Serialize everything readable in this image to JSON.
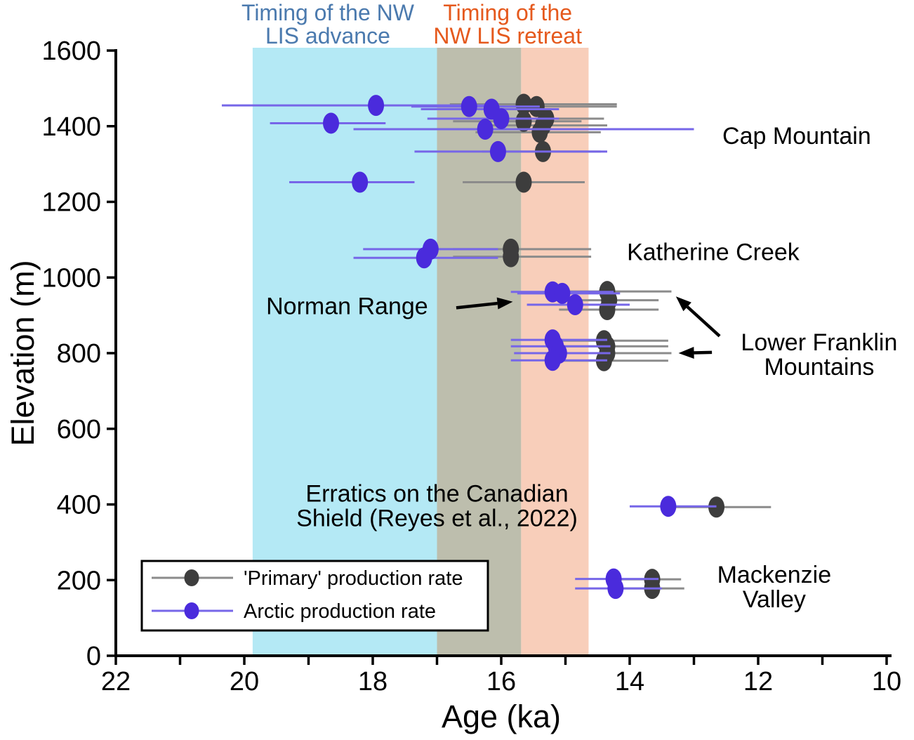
{
  "figure": {
    "band_titles": [
      {
        "lines": [
          "Timing of the NW",
          "LIS advance"
        ],
        "color": "#4B7AAE",
        "center_age": 18.7
      },
      {
        "lines": [
          "Timing of the",
          "NW LIS retreat"
        ],
        "color": "#E5591D",
        "center_age": 15.9
      }
    ],
    "legend": {
      "entries": [
        {
          "label": "'Primary' production rate",
          "marker": "#3D3D3D",
          "line": "#8B8B8B"
        },
        {
          "label": "Arctic production rate",
          "marker": "#4A2BDC",
          "line": "#7666E8"
        }
      ]
    }
  },
  "chart_data": {
    "type": "scatter",
    "title": "",
    "xlabel": "Age (ka)",
    "ylabel": "Elevation (m)",
    "xlim": [
      22,
      10
    ],
    "ylim": [
      0,
      1600
    ],
    "x_ticks": [
      22,
      21,
      20,
      19,
      18,
      17,
      16,
      15,
      14,
      13,
      12,
      11,
      10
    ],
    "x_tick_labels": [
      "22",
      "20",
      "18",
      "16",
      "14",
      "12",
      "10"
    ],
    "y_ticks": [
      0,
      200,
      400,
      600,
      800,
      1000,
      1200,
      1400,
      1600
    ],
    "grid": false,
    "bands": [
      {
        "name": "NW LIS advance",
        "from_ka": 19.87,
        "to_ka": 17.0,
        "color": "#B4E9F5"
      },
      {
        "name": "advance-retreat overlap",
        "from_ka": 17.0,
        "to_ka": 15.69,
        "color": "#BDBEAD"
      },
      {
        "name": "NW LIS retreat",
        "from_ka": 15.69,
        "to_ka": 14.64,
        "color": "#F8CEBA"
      }
    ],
    "series": [
      {
        "name": "'Primary' production rate",
        "marker_color": "#3D3D3D",
        "bar_color": "#8B8B8B",
        "points": [
          {
            "group": "Cap Mountain",
            "age": 15.65,
            "elev": 1458,
            "age_old": 16.8,
            "age_young": 14.2
          },
          {
            "group": "Cap Mountain",
            "age": 15.45,
            "elev": 1452,
            "age_old": 16.6,
            "age_young": 14.2
          },
          {
            "group": "Cap Mountain",
            "age": 15.3,
            "elev": 1420,
            "age_old": 16.3,
            "age_young": 14.4
          },
          {
            "group": "Cap Mountain",
            "age": 15.65,
            "elev": 1413,
            "age_old": 16.75,
            "age_young": 14.75
          },
          {
            "group": "Cap Mountain",
            "age": 15.35,
            "elev": 1402,
            "age_old": 16.35,
            "age_young": 14.35
          },
          {
            "group": "Cap Mountain",
            "age": 15.4,
            "elev": 1384,
            "age_old": 16.4,
            "age_young": 14.45
          },
          {
            "group": "Cap Mountain",
            "age": 15.35,
            "elev": 1333,
            "age_old": 16.3,
            "age_young": 14.45
          },
          {
            "group": "Cap Mountain",
            "age": 15.65,
            "elev": 1252,
            "age_old": 16.6,
            "age_young": 14.7
          },
          {
            "group": "Katherine Creek",
            "age": 15.85,
            "elev": 1075,
            "age_old": 16.75,
            "age_young": 14.6
          },
          {
            "group": "Katherine Creek",
            "age": 15.85,
            "elev": 1055,
            "age_old": 16.75,
            "age_young": 14.6
          },
          {
            "group": "Norman Range",
            "age": 14.35,
            "elev": 963,
            "age_old": 15.15,
            "age_young": 13.35
          },
          {
            "group": "Norman Range",
            "age": 14.32,
            "elev": 940,
            "age_old": 15.1,
            "age_young": 13.55
          },
          {
            "group": "Norman Range",
            "age": 14.35,
            "elev": 915,
            "age_old": 15.1,
            "age_young": 13.55
          },
          {
            "group": "Lower Franklin Mountains",
            "age": 14.4,
            "elev": 833,
            "age_old": 15.2,
            "age_young": 13.4
          },
          {
            "group": "Lower Franklin Mountains",
            "age": 14.35,
            "elev": 818,
            "age_old": 15.2,
            "age_young": 13.4
          },
          {
            "group": "Lower Franklin Mountains",
            "age": 14.35,
            "elev": 800,
            "age_old": 15.2,
            "age_young": 13.35
          },
          {
            "group": "Lower Franklin Mountains",
            "age": 14.4,
            "elev": 780,
            "age_old": 15.2,
            "age_young": 13.4
          },
          {
            "group": "Erratics on the Canadian Shield",
            "age": 12.65,
            "elev": 393,
            "age_old": 13.5,
            "age_young": 11.8
          },
          {
            "group": "Mackenzie Valley",
            "age": 13.65,
            "elev": 202,
            "age_old": 14.3,
            "age_young": 13.2
          },
          {
            "group": "Mackenzie Valley",
            "age": 13.65,
            "elev": 178,
            "age_old": 14.3,
            "age_young": 13.15
          }
        ]
      },
      {
        "name": "Arctic production rate",
        "marker_color": "#4A2BDC",
        "bar_color": "#7666E8",
        "points": [
          {
            "group": "Cap Mountain",
            "age": 17.95,
            "elev": 1455,
            "age_old": 20.35,
            "age_young": 16.25
          },
          {
            "group": "Cap Mountain",
            "age": 16.5,
            "elev": 1452,
            "age_old": 17.4,
            "age_young": 15.4
          },
          {
            "group": "Cap Mountain",
            "age": 16.15,
            "elev": 1445,
            "age_old": 17.25,
            "age_young": 15.1
          },
          {
            "group": "Cap Mountain",
            "age": 16.0,
            "elev": 1420,
            "age_old": 17.15,
            "age_young": 15.1
          },
          {
            "group": "Cap Mountain",
            "age": 18.65,
            "elev": 1408,
            "age_old": 19.6,
            "age_young": 17.8
          },
          {
            "group": "Cap Mountain",
            "age": 16.25,
            "elev": 1392,
            "age_old": 18.3,
            "age_young": 13.0
          },
          {
            "group": "Cap Mountain",
            "age": 16.05,
            "elev": 1333,
            "age_old": 17.35,
            "age_young": 14.35
          },
          {
            "group": "Cap Mountain",
            "age": 18.2,
            "elev": 1252,
            "age_old": 19.3,
            "age_young": 17.35
          },
          {
            "group": "Katherine Creek",
            "age": 17.1,
            "elev": 1075,
            "age_old": 18.15,
            "age_young": 16.05
          },
          {
            "group": "Katherine Creek",
            "age": 17.2,
            "elev": 1052,
            "age_old": 18.3,
            "age_young": 16.05
          },
          {
            "group": "Norman Range",
            "age": 15.2,
            "elev": 962,
            "age_old": 15.85,
            "age_young": 14.25
          },
          {
            "group": "Norman Range",
            "age": 15.05,
            "elev": 958,
            "age_old": 15.75,
            "age_young": 14.15
          },
          {
            "group": "Norman Range",
            "age": 14.85,
            "elev": 928,
            "age_old": 15.6,
            "age_young": 14.0
          },
          {
            "group": "Lower Franklin Mountains",
            "age": 15.2,
            "elev": 835,
            "age_old": 15.85,
            "age_young": 14.35
          },
          {
            "group": "Lower Franklin Mountains",
            "age": 15.15,
            "elev": 818,
            "age_old": 15.85,
            "age_young": 14.3
          },
          {
            "group": "Lower Franklin Mountains",
            "age": 15.1,
            "elev": 800,
            "age_old": 15.8,
            "age_young": 14.3
          },
          {
            "group": "Lower Franklin Mountains",
            "age": 15.2,
            "elev": 781,
            "age_old": 15.85,
            "age_young": 14.35
          },
          {
            "group": "Erratics on the Canadian Shield",
            "age": 13.4,
            "elev": 395,
            "age_old": 14.0,
            "age_young": 12.65
          },
          {
            "group": "Mackenzie Valley",
            "age": 14.25,
            "elev": 203,
            "age_old": 14.85,
            "age_young": 13.55
          },
          {
            "group": "Mackenzie Valley",
            "age": 14.22,
            "elev": 178,
            "age_old": 14.85,
            "age_young": 13.5
          }
        ]
      }
    ],
    "annotations": [
      {
        "lines": [
          "Cap Mountain"
        ],
        "age": 11.4,
        "elev": 1375
      },
      {
        "lines": [
          "Katherine Creek"
        ],
        "age": 12.7,
        "elev": 1068
      },
      {
        "lines": [
          "Norman Range"
        ],
        "age": 18.4,
        "elev": 925
      },
      {
        "lines": [
          "Lower Franklin",
          "Mountains"
        ],
        "age": 11.05,
        "elev": 830
      },
      {
        "lines": [
          "Erratics on the Canadian",
          "Shield (Reyes et al., 2022)"
        ],
        "age": 17.0,
        "elev": 430
      },
      {
        "lines": [
          "Mackenzie",
          "Valley"
        ],
        "age": 11.75,
        "elev": 215
      }
    ],
    "arrows": [
      {
        "from": {
          "age": 16.7,
          "elev": 920
        },
        "to": {
          "age": 15.82,
          "elev": 936
        }
      },
      {
        "from": {
          "age": 12.6,
          "elev": 845
        },
        "to": {
          "age": 13.28,
          "elev": 950
        }
      },
      {
        "from": {
          "age": 12.72,
          "elev": 802
        },
        "to": {
          "age": 13.24,
          "elev": 800
        }
      }
    ]
  }
}
